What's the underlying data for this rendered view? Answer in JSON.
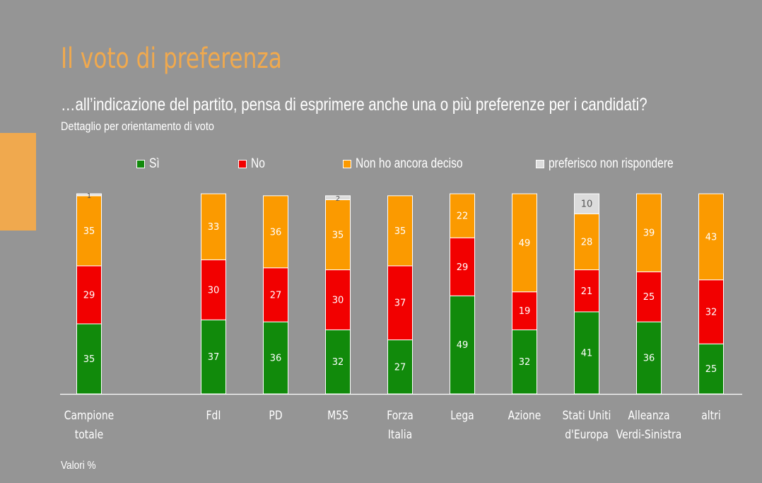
{
  "title": "Il voto di preferenza",
  "subtitle": "…all’indicazione del partito, pensa di esprimere anche una o più preferenze per i candidati?",
  "detail": "Dettaglio per orientamento di voto",
  "footer": "Valori %",
  "colors": {
    "accent": "#f0a94e",
    "background": "#959595"
  },
  "legend": [
    {
      "label": "Sì",
      "color": "#118a0b"
    },
    {
      "label": "No",
      "color": "#f20000"
    },
    {
      "label": "Non ho ancora deciso",
      "color": "#fb9a00"
    },
    {
      "label": "preferisco non rispondere",
      "color": "#dcdcdc"
    }
  ],
  "chart_data": {
    "type": "bar",
    "stacked": true,
    "categories": [
      [
        "Campione",
        "totale"
      ],
      [
        "FdI"
      ],
      [
        "PD"
      ],
      [
        "M5S"
      ],
      [
        "Forza",
        "Italia"
      ],
      [
        "Lega"
      ],
      [
        "Azione"
      ],
      [
        "Stati Uniti",
        "d'Europa"
      ],
      [
        "Alleanza",
        "Verdi-Sinistra"
      ],
      [
        "altri"
      ]
    ],
    "series": [
      {
        "name": "Sì",
        "color": "#118a0b",
        "values": [
          35,
          37,
          36,
          32,
          27,
          49,
          32,
          41,
          36,
          25
        ]
      },
      {
        "name": "No",
        "color": "#f20000",
        "values": [
          29,
          30,
          27,
          30,
          37,
          29,
          19,
          21,
          25,
          32
        ]
      },
      {
        "name": "Non ho ancora deciso",
        "color": "#fb9a00",
        "values": [
          35,
          33,
          36,
          35,
          35,
          22,
          49,
          28,
          39,
          43
        ]
      },
      {
        "name": "preferisco non rispondere",
        "color": "#dcdcdc",
        "values": [
          1,
          0,
          0,
          2,
          0,
          0,
          0,
          10,
          0,
          0
        ]
      }
    ],
    "ylim": [
      0,
      100
    ],
    "grid": false,
    "legend_position": "top"
  }
}
